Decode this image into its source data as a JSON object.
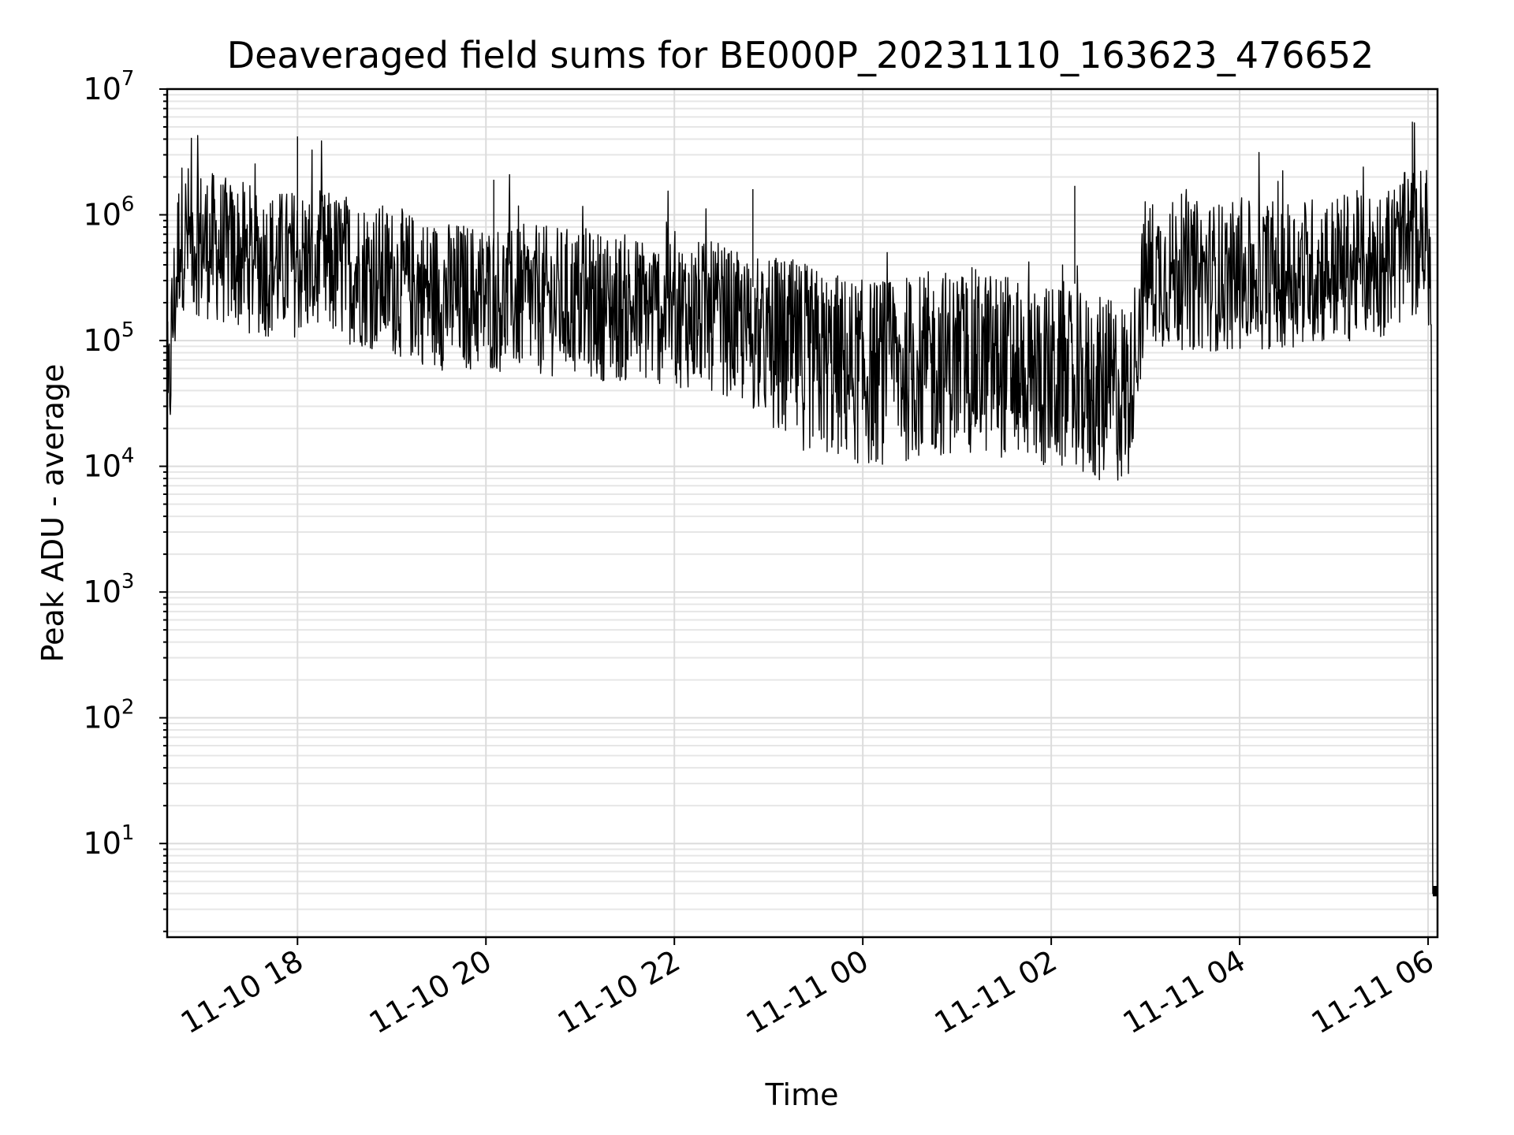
{
  "chart_data": {
    "type": "line",
    "title": "Deaveraged field sums for BE000P_20231110_163623_476652",
    "xlabel": "Time",
    "ylabel": "Peak ADU - average",
    "yscale": "log",
    "ylim": [
      1.8,
      10000000
    ],
    "xlim": [
      "2023-11-10 16:37",
      "2023-11-11 06:06"
    ],
    "grid": true,
    "x_ticks": [
      {
        "value": "2023-11-10 18:00",
        "label": "11-10 18"
      },
      {
        "value": "2023-11-10 20:00",
        "label": "11-10 20"
      },
      {
        "value": "2023-11-10 22:00",
        "label": "11-10 22"
      },
      {
        "value": "2023-11-11 00:00",
        "label": "11-11 00"
      },
      {
        "value": "2023-11-11 02:00",
        "label": "11-11 02"
      },
      {
        "value": "2023-11-11 04:00",
        "label": "11-11 04"
      },
      {
        "value": "2023-11-11 06:00",
        "label": "11-11 06"
      }
    ],
    "y_ticks": [
      {
        "value": 10,
        "base": "10",
        "exp": "1"
      },
      {
        "value": 100,
        "base": "10",
        "exp": "2"
      },
      {
        "value": 1000,
        "base": "10",
        "exp": "3"
      },
      {
        "value": 10000,
        "base": "10",
        "exp": "4"
      },
      {
        "value": 100000,
        "base": "10",
        "exp": "5"
      },
      {
        "value": 1000000,
        "base": "10",
        "exp": "6"
      },
      {
        "value": 10000000,
        "base": "10",
        "exp": "7"
      }
    ],
    "series": [
      {
        "color": "#000000",
        "x": [
          "2023-11-10 16:37",
          "2023-11-10 16:40",
          "2023-11-10 16:45",
          "2023-11-10 17:00",
          "2023-11-10 17:15",
          "2023-11-10 17:30",
          "2023-11-10 17:45",
          "2023-11-10 18:00",
          "2023-11-10 18:30",
          "2023-11-10 19:00",
          "2023-11-10 19:30",
          "2023-11-10 20:00",
          "2023-11-10 20:30",
          "2023-11-10 21:00",
          "2023-11-10 21:30",
          "2023-11-10 22:00",
          "2023-11-10 22:30",
          "2023-11-10 23:00",
          "2023-11-10 23:30",
          "2023-11-11 00:00",
          "2023-11-11 00:30",
          "2023-11-11 01:00",
          "2023-11-11 01:30",
          "2023-11-11 02:00",
          "2023-11-11 02:30",
          "2023-11-11 02:50",
          "2023-11-11 03:00",
          "2023-11-11 03:30",
          "2023-11-11 04:00",
          "2023-11-11 04:30",
          "2023-11-11 05:00",
          "2023-11-11 05:30",
          "2023-11-11 05:50",
          "2023-11-11 06:00",
          "2023-11-11 06:02",
          "2023-11-11 06:03",
          "2023-11-11 06:06"
        ],
        "values": [
          15000,
          120000,
          700000,
          600000,
          500000,
          450000,
          400000,
          420000,
          380000,
          300000,
          230000,
          220000,
          210000,
          200000,
          180000,
          170000,
          150000,
          90000,
          70000,
          55000,
          60000,
          70000,
          65000,
          50000,
          40000,
          40000,
          350000,
          330000,
          320000,
          350000,
          370000,
          420000,
          600000,
          600000,
          200000,
          4,
          4
        ],
        "spikes_max": [
          {
            "x": "2023-11-10 18:00",
            "value": 4200000
          },
          {
            "x": "2023-11-10 20:05",
            "value": 1900000
          },
          {
            "x": "2023-11-10 22:50",
            "value": 1600000
          },
          {
            "x": "2023-11-11 02:15",
            "value": 1700000
          },
          {
            "x": "2023-11-11 05:50",
            "value": 5500000
          }
        ]
      }
    ]
  }
}
